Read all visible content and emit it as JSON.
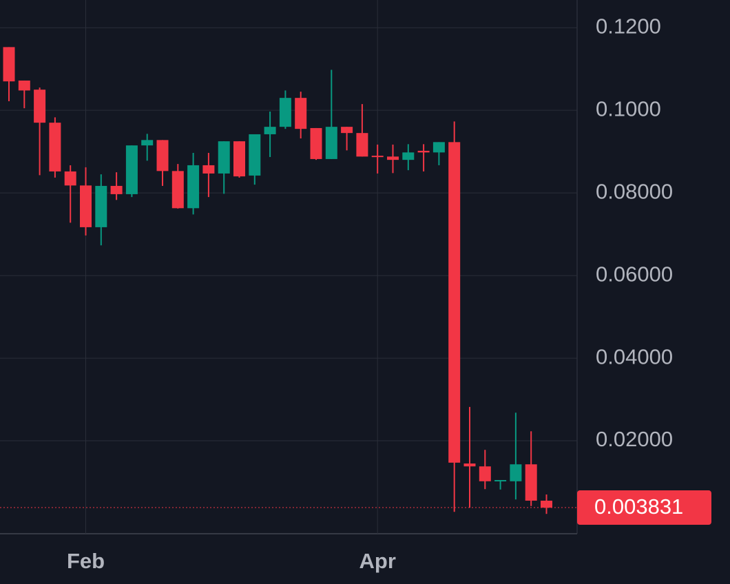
{
  "chart_data": {
    "type": "candlestick",
    "categories": [
      null,
      null,
      null,
      null,
      null,
      "Feb",
      null,
      null,
      null,
      null,
      null,
      null,
      null,
      null,
      null,
      null,
      null,
      null,
      null,
      null,
      null,
      null,
      null,
      null,
      "Apr",
      null,
      null,
      null,
      null,
      null,
      null,
      null,
      null,
      null,
      null,
      null
    ],
    "open": [
      0.1153,
      0.1072,
      0.105,
      0.097,
      0.0852,
      0.0818,
      0.0717,
      0.0817,
      0.0797,
      0.0915,
      0.0928,
      0.0853,
      0.0763,
      0.0867,
      0.0847,
      0.0925,
      0.0842,
      0.0942,
      0.096,
      0.103,
      0.0957,
      0.0882,
      0.096,
      0.0945,
      0.089,
      0.0888,
      0.088,
      0.0902,
      0.0898,
      0.0923,
      0.0145,
      0.0138,
      0.0102,
      0.0102,
      0.0143,
      0.0055
    ],
    "high": [
      0.1153,
      0.1072,
      0.1055,
      0.0983,
      0.0867,
      0.0862,
      0.0845,
      0.085,
      0.0915,
      0.0943,
      0.0928,
      0.087,
      0.0897,
      0.0897,
      0.0925,
      0.0925,
      0.0942,
      0.0997,
      0.1048,
      0.1045,
      0.0957,
      0.1098,
      0.096,
      0.1015,
      0.0917,
      0.0917,
      0.0918,
      0.0918,
      0.0923,
      0.0973,
      0.0282,
      0.0178,
      0.0105,
      0.0268,
      0.0223,
      0.007
    ],
    "low": [
      0.1022,
      0.1005,
      0.0843,
      0.0837,
      0.0728,
      0.0697,
      0.0673,
      0.0783,
      0.079,
      0.0878,
      0.0817,
      0.0762,
      0.0748,
      0.079,
      0.0798,
      0.0837,
      0.082,
      0.0887,
      0.0955,
      0.0932,
      0.088,
      0.0882,
      0.0903,
      0.0888,
      0.0847,
      0.0848,
      0.0855,
      0.0852,
      0.0867,
      0.0028,
      0.0038,
      0.0083,
      0.0082,
      0.0058,
      0.0042,
      0.0023
    ],
    "close": [
      0.107,
      0.1048,
      0.097,
      0.0852,
      0.0818,
      0.0717,
      0.0817,
      0.0797,
      0.0915,
      0.0928,
      0.0853,
      0.0763,
      0.0867,
      0.0847,
      0.0925,
      0.084,
      0.0942,
      0.096,
      0.103,
      0.0955,
      0.0882,
      0.096,
      0.0945,
      0.0888,
      0.0887,
      0.088,
      0.0898,
      0.0898,
      0.0923,
      0.0147,
      0.0138,
      0.0102,
      0.0105,
      0.0143,
      0.0055,
      0.0038
    ],
    "up_color": "#089981",
    "down_color": "#f23645",
    "ylim": [
      -0.0025,
      0.1267
    ],
    "yticks": [
      {
        "value": 0.12,
        "label": "0.1200"
      },
      {
        "value": 0.1,
        "label": "0.1000"
      },
      {
        "value": 0.08,
        "label": "0.08000"
      },
      {
        "value": 0.06,
        "label": "0.06000"
      },
      {
        "value": 0.04,
        "label": "0.04000"
      },
      {
        "value": 0.02,
        "label": "0.02000"
      }
    ],
    "last_price": 0.003831,
    "grid": true
  }
}
